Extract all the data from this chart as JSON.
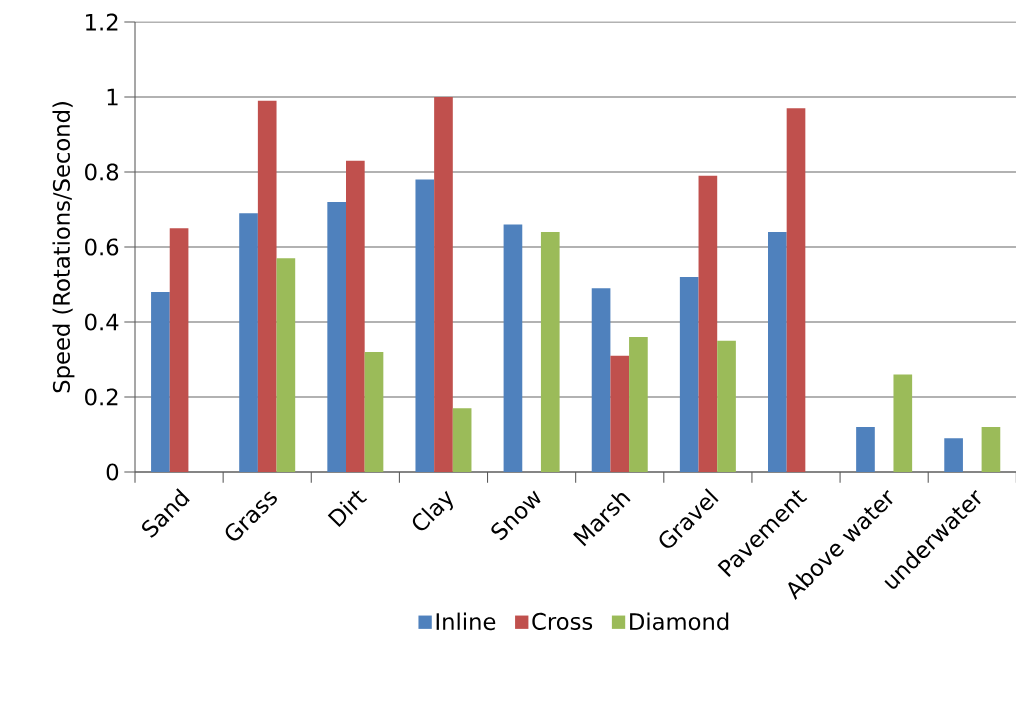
{
  "chart_data": {
    "type": "bar",
    "ylabel": "Speed (Rotations/Second)",
    "categories": [
      "Sand",
      "Grass",
      "Dirt",
      "Clay",
      "Snow",
      "Marsh",
      "Gravel",
      "Pavement",
      "Above water",
      "underwater"
    ],
    "series": [
      {
        "name": "Inline",
        "color": "#4f81bd",
        "values": [
          0.48,
          0.69,
          0.72,
          0.78,
          0.66,
          0.49,
          0.52,
          0.64,
          0.12,
          0.09
        ]
      },
      {
        "name": "Cross",
        "color": "#c0504d",
        "values": [
          0.65,
          0.99,
          0.83,
          1.0,
          null,
          0.31,
          0.79,
          0.97,
          null,
          null
        ]
      },
      {
        "name": "Diamond",
        "color": "#9bbb59",
        "values": [
          null,
          0.57,
          0.32,
          0.17,
          0.64,
          0.36,
          0.35,
          null,
          0.26,
          0.12
        ]
      }
    ],
    "ylim": [
      0,
      1.2
    ],
    "yticks": [
      0,
      0.2,
      0.4,
      0.6,
      0.8,
      1,
      1.2
    ],
    "grid": "y",
    "legend": "bottom"
  }
}
